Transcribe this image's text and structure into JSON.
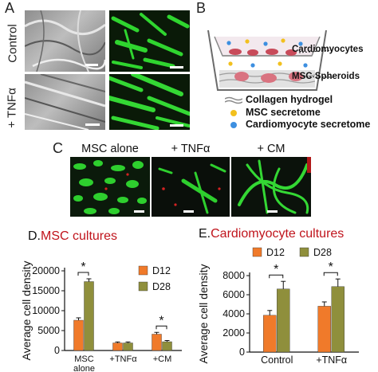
{
  "panel_letters": {
    "a": "A",
    "b": "B",
    "c": "C",
    "d": "D.",
    "e": "E."
  },
  "panel_a": {
    "row_labels": [
      "Control",
      "+ TNFα"
    ]
  },
  "panel_b": {
    "labels": {
      "cardiomyocytes": "Cardiomyocytes",
      "msc_spheroids": "MSC Spheroids"
    },
    "legend": [
      {
        "icon": "collagen-hydrogel-icon",
        "label": "Collagen hydrogel"
      },
      {
        "icon": "msc-secretome-icon",
        "label": "MSC secretome",
        "color": "#f2c01e"
      },
      {
        "icon": "cardiomyocyte-secretome-icon",
        "label": "Cardiomyocyte secretome",
        "color": "#3d8fe0"
      }
    ]
  },
  "panel_c": {
    "labels": [
      "MSC alone",
      "+ TNFα",
      "+ CM"
    ]
  },
  "panel_d": {
    "title": "MSC cultures",
    "title_color": "#c0141c"
  },
  "panel_e": {
    "title": "Cardiomyocyte cultures",
    "title_color": "#c0141c"
  },
  "colors": {
    "d12": "#f07a2a",
    "d28": "#8f8f3c"
  },
  "chart_data": [
    {
      "type": "bar",
      "title": "MSC cultures",
      "ylabel": "Average  cell density",
      "categories": [
        "MSC alone",
        "+TNFα",
        "+CM"
      ],
      "category_tick_labels": [
        [
          "MSC",
          "alone"
        ],
        [
          "+TNFα"
        ],
        [
          "+CM"
        ]
      ],
      "series": [
        {
          "name": "D12",
          "values": [
            7600,
            1900,
            4100
          ],
          "errors": [
            600,
            250,
            450
          ]
        },
        {
          "name": "D28",
          "values": [
            17300,
            1900,
            2200
          ],
          "errors": [
            700,
            250,
            300
          ]
        }
      ],
      "ylim": [
        0,
        20000
      ],
      "yticks": [
        0,
        5000,
        10000,
        15000,
        20000
      ],
      "ytick_labels": [
        "0",
        "5000",
        "10000",
        "15000",
        "20000"
      ],
      "significance": [
        {
          "category": 0,
          "label": "*"
        },
        {
          "category": 2,
          "label": "*"
        }
      ],
      "legend_position": "right"
    },
    {
      "type": "bar",
      "title": "Cardiomyocyte cultures",
      "ylabel": "Average  cell density",
      "categories": [
        "Control",
        "+TNFα"
      ],
      "category_tick_labels": [
        [
          "Control"
        ],
        [
          "+TNFα"
        ]
      ],
      "series": [
        {
          "name": "D12",
          "values": [
            3850,
            4800
          ],
          "errors": [
            500,
            450
          ]
        },
        {
          "name": "D28",
          "values": [
            6600,
            6850
          ],
          "errors": [
            800,
            800
          ]
        }
      ],
      "ylim": [
        0,
        8000
      ],
      "yticks": [
        0,
        2000,
        4000,
        6000,
        8000
      ],
      "ytick_labels": [
        "0",
        "2000",
        "4000",
        "6000",
        "8000"
      ],
      "significance": [
        {
          "category": 0,
          "label": "*"
        },
        {
          "category": 1,
          "label": "*"
        }
      ],
      "legend_position": "top"
    }
  ]
}
